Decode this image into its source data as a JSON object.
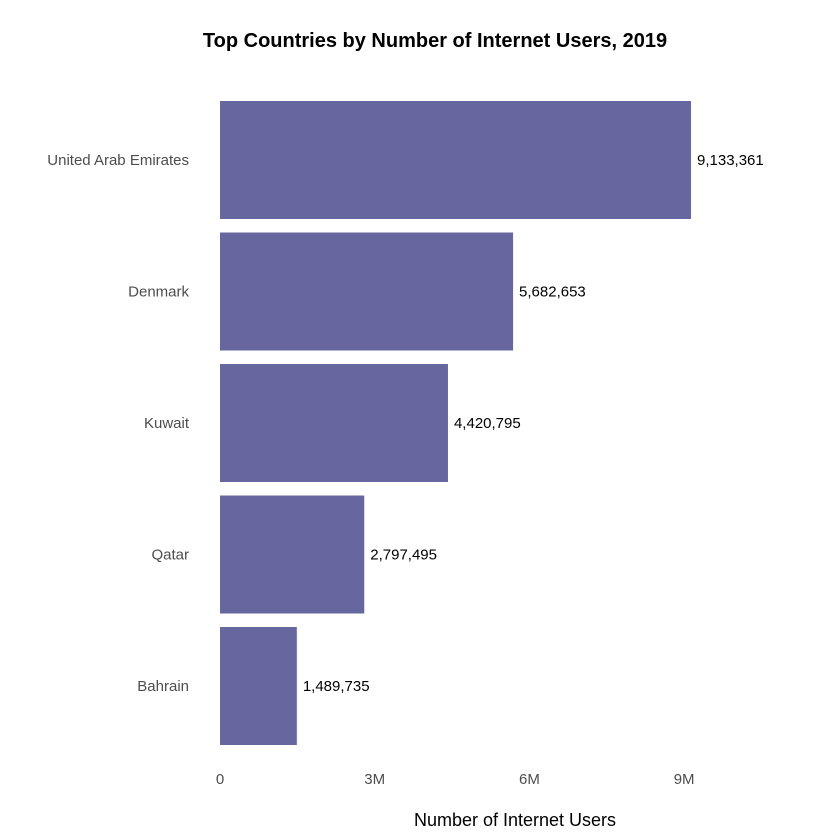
{
  "chart_data": {
    "type": "bar",
    "orientation": "horizontal",
    "title": "Top Countries by Number of Internet Users, 2019",
    "xlabel": "Number of Internet Users",
    "ylabel": "",
    "categories": [
      "United Arab Emirates",
      "Denmark",
      "Kuwait",
      "Qatar",
      "Bahrain"
    ],
    "values": [
      9133361,
      5682653,
      4420795,
      2797495,
      1489735
    ],
    "value_labels": [
      "9,133,361",
      "5,682,653",
      "4,420,795",
      "2,797,495",
      "1,489,735"
    ],
    "xlim": [
      0,
      9133361
    ],
    "x_ticks": [
      0,
      3000000,
      6000000,
      9000000
    ],
    "x_tick_labels": [
      "0",
      "3M",
      "6M",
      "9M"
    ],
    "grid": false,
    "legend": "none",
    "bar_color": "#65679e"
  }
}
